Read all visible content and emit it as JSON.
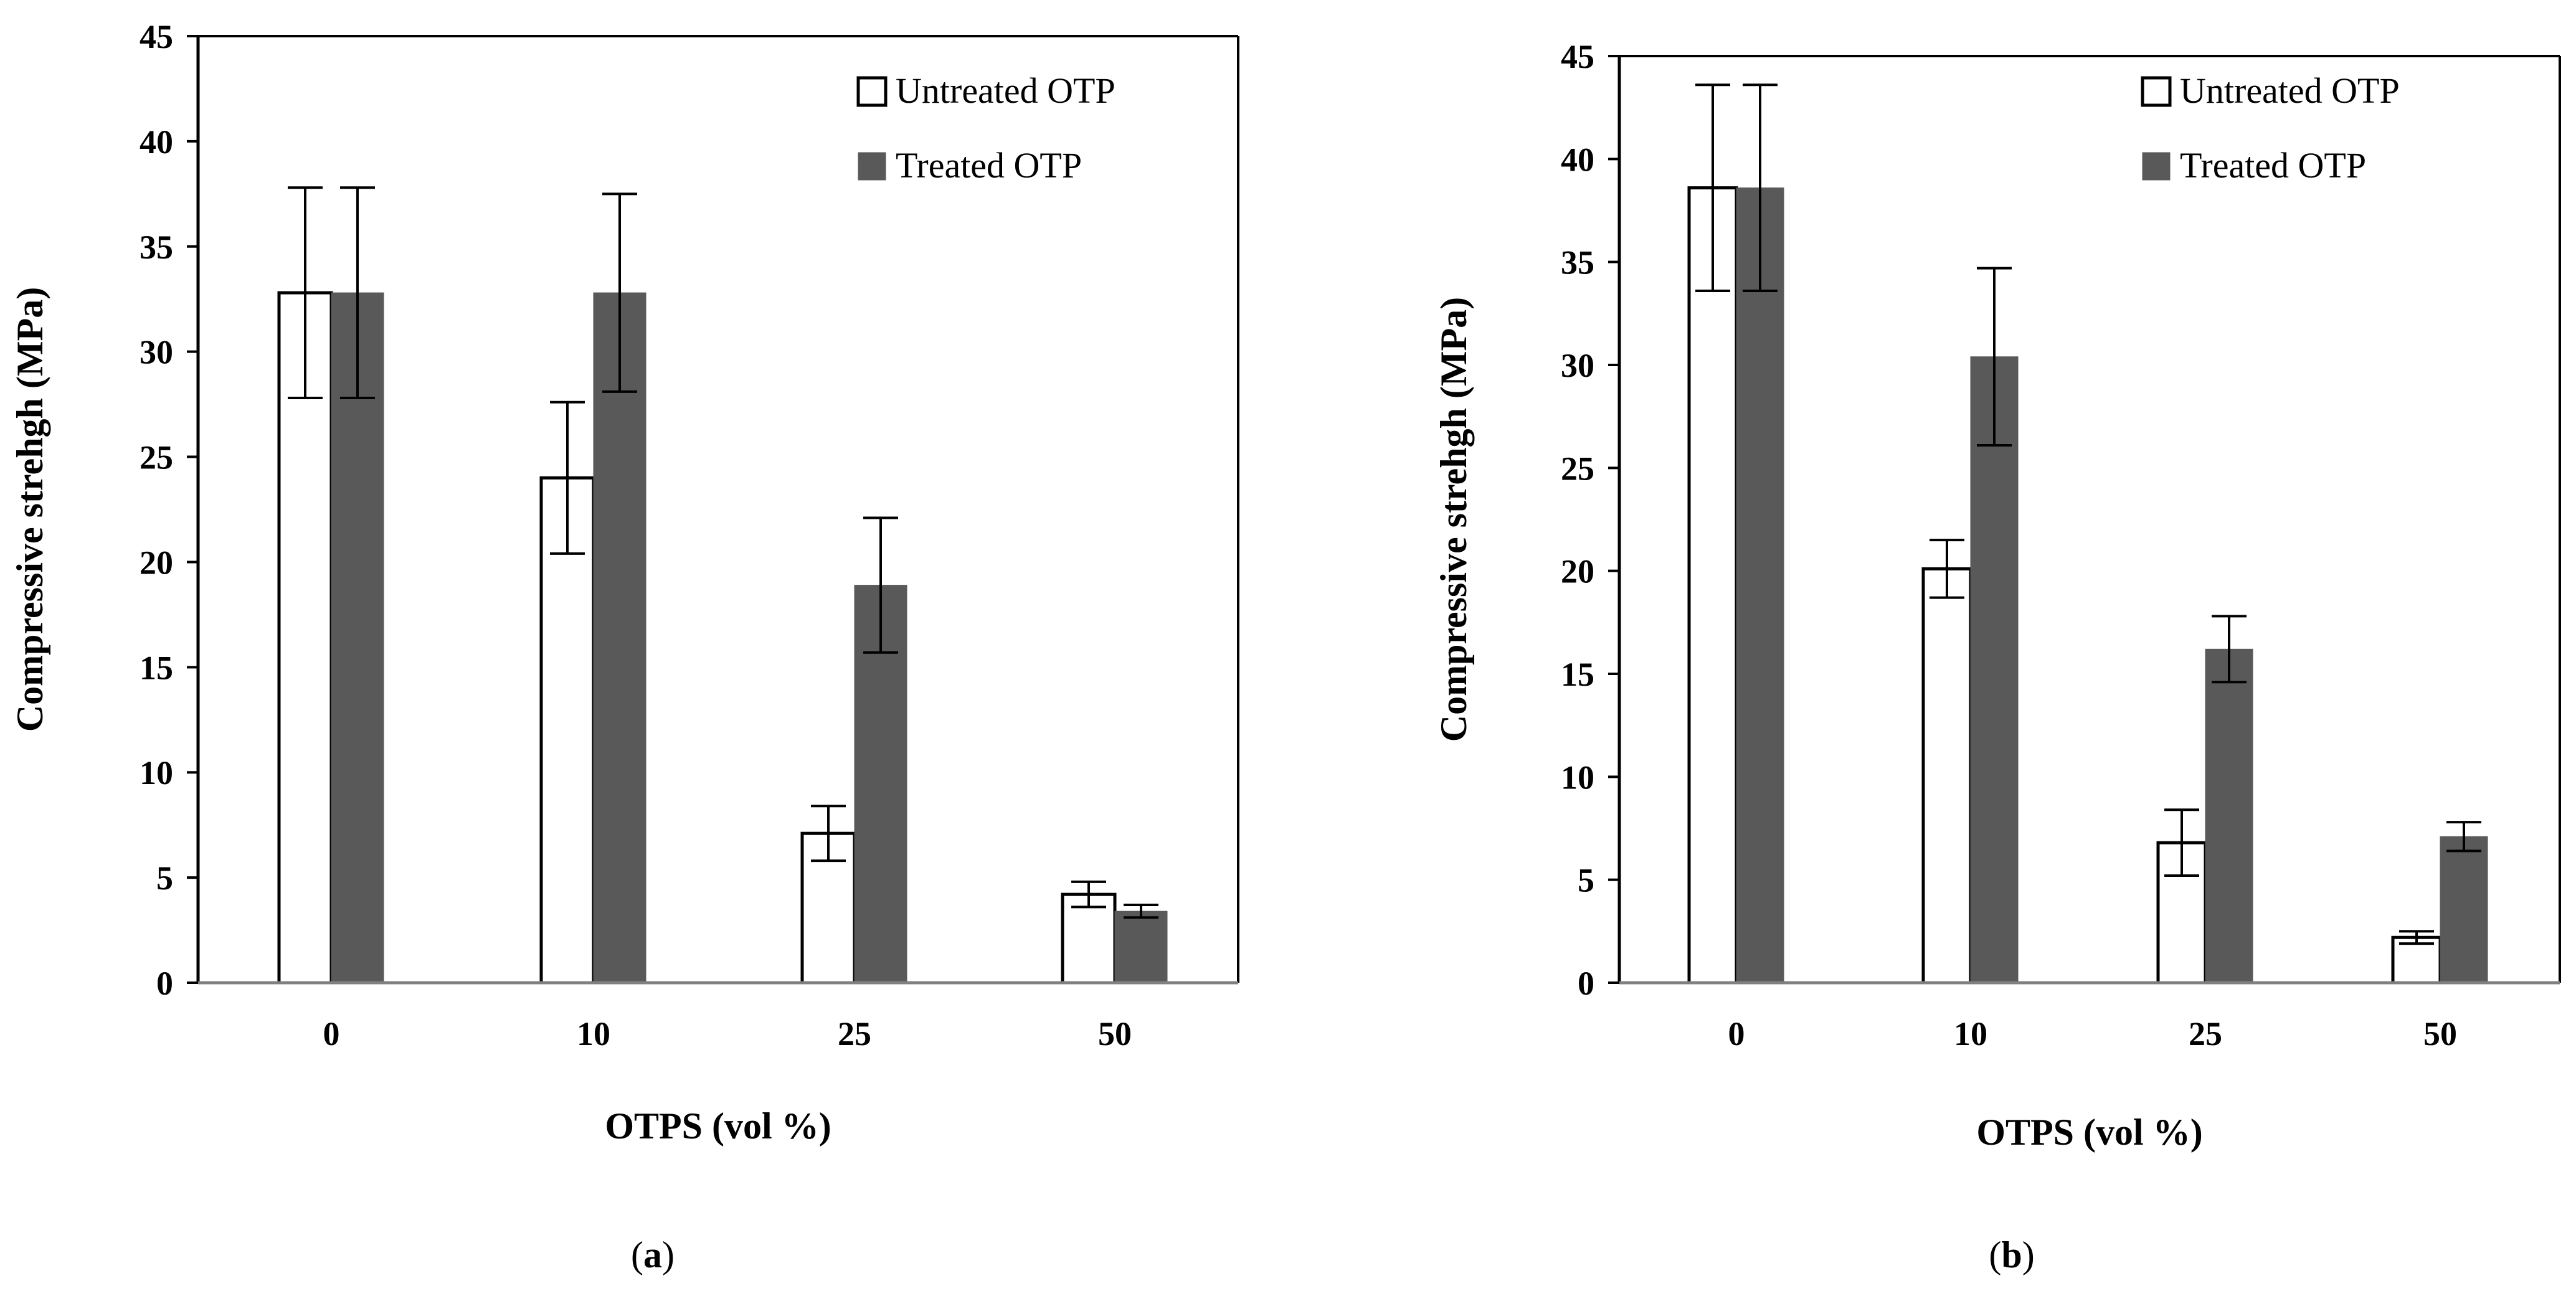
{
  "chart_data": [
    {
      "type": "bar",
      "caption_letter": "a",
      "categories": [
        "0",
        "10",
        "25",
        "50"
      ],
      "xlabel": "OTPS (vol %)",
      "ylabel": "Compressive strehgh (MPa)",
      "ylim": [
        0,
        45
      ],
      "yticks": [
        "0",
        "5",
        "10",
        "15",
        "20",
        "25",
        "30",
        "35",
        "40",
        "45"
      ],
      "legend_position": "top-right",
      "grid": false,
      "series": [
        {
          "name": "Untreated OTP",
          "values": [
            32.8,
            24.0,
            7.1,
            4.2
          ],
          "errors": [
            5.0,
            3.6,
            1.3,
            0.6
          ],
          "color": "#ffffff"
        },
        {
          "name": "Treated OTP",
          "values": [
            32.8,
            32.8,
            18.9,
            3.4
          ],
          "errors": [
            5.0,
            4.7,
            3.2,
            0.3
          ],
          "color": "#595959"
        }
      ]
    },
    {
      "type": "bar",
      "caption_letter": "b",
      "categories": [
        "0",
        "10",
        "25",
        "50"
      ],
      "xlabel": "OTPS (vol %)",
      "ylabel": "Compressive  strehgh (MPa)",
      "ylim": [
        0,
        45
      ],
      "yticks": [
        "0",
        "5",
        "10",
        "15",
        "20",
        "25",
        "30",
        "35",
        "40",
        "45"
      ],
      "legend_position": "top-right",
      "grid": false,
      "series": [
        {
          "name": "Untreated OTP",
          "values": [
            38.6,
            20.1,
            6.8,
            2.2
          ],
          "errors": [
            5.0,
            1.4,
            1.6,
            0.3
          ],
          "color": "#ffffff"
        },
        {
          "name": "Treated OTP",
          "values": [
            38.6,
            30.4,
            16.2,
            7.1
          ],
          "errors": [
            5.0,
            4.3,
            1.6,
            0.7
          ],
          "color": "#595959"
        }
      ]
    }
  ]
}
